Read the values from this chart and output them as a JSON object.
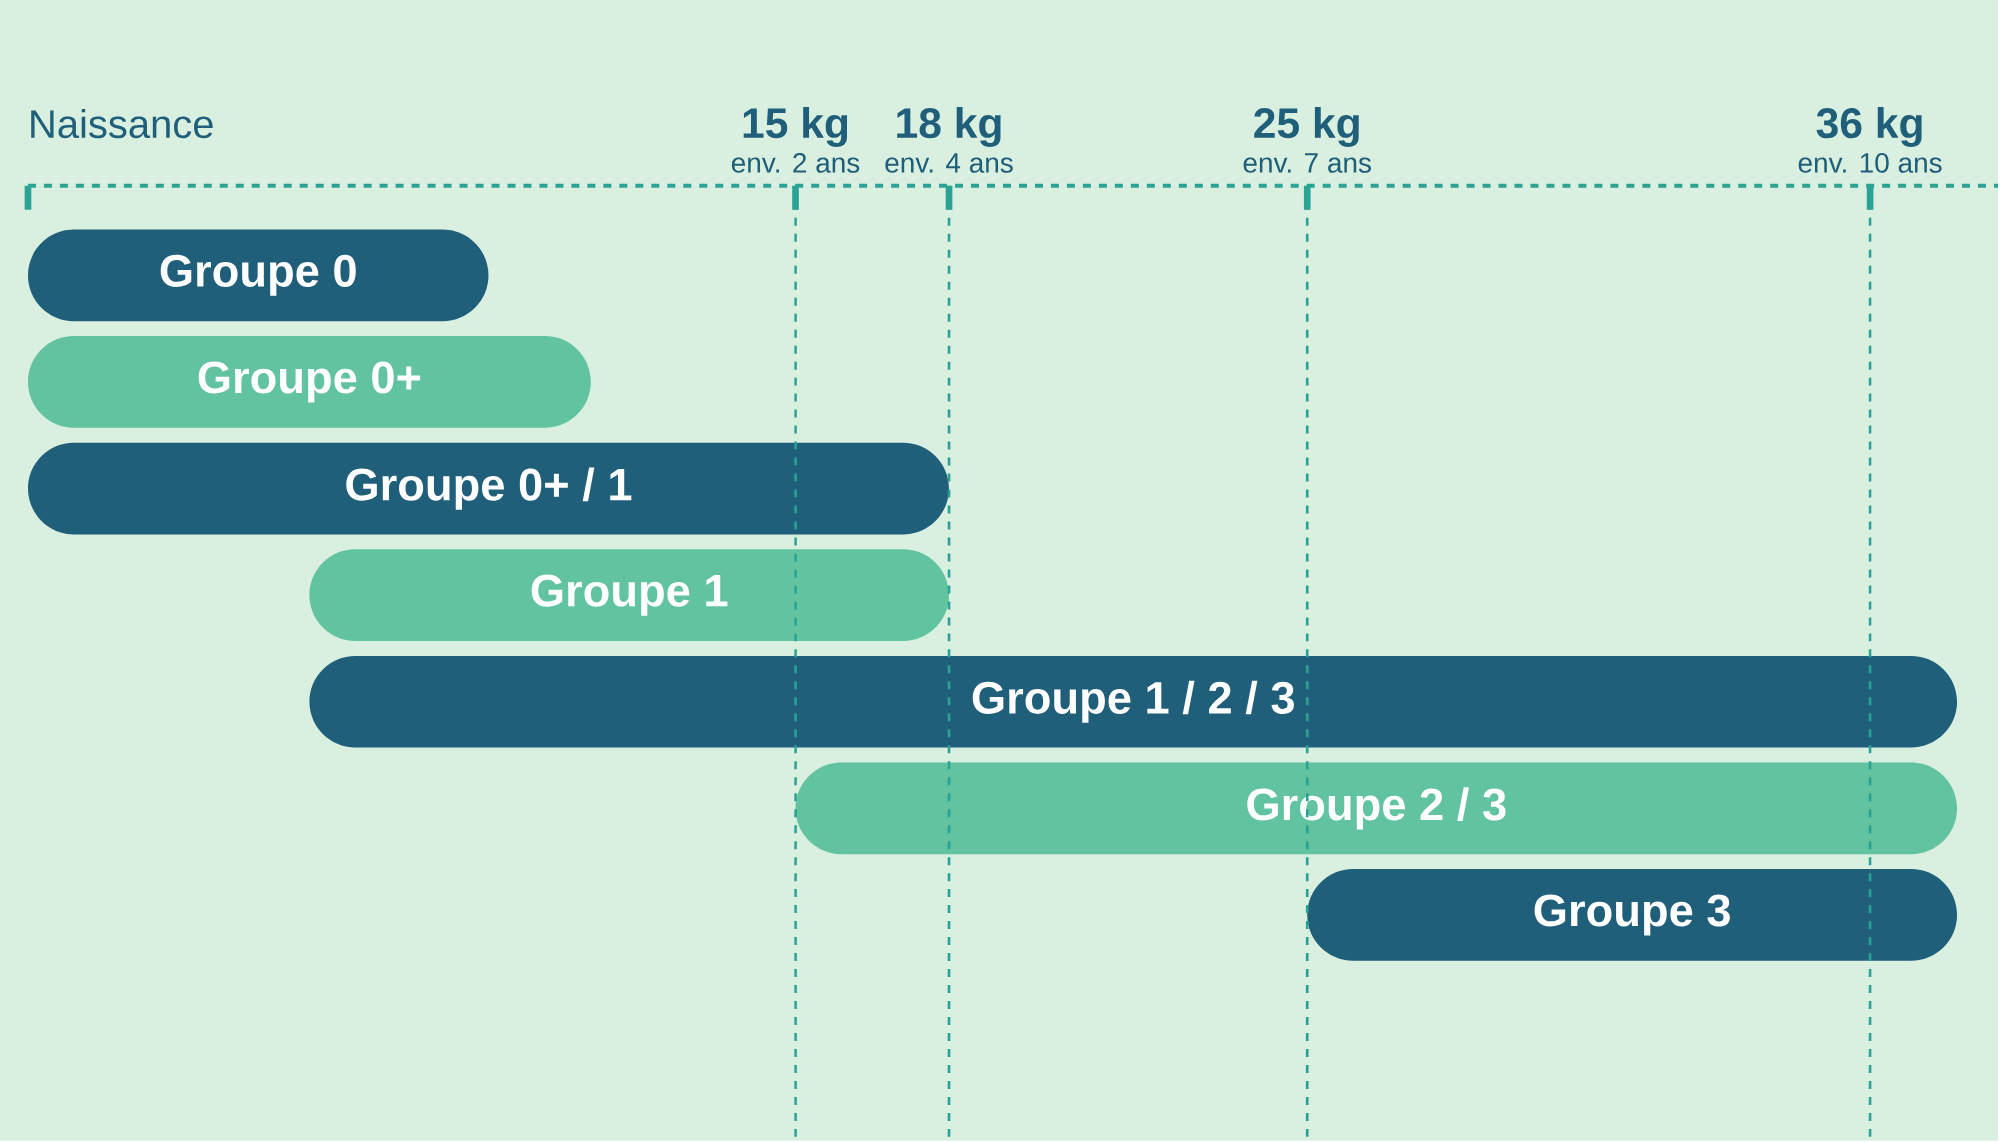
{
  "chart_data": {
    "type": "bar",
    "orientation": "horizontal",
    "categories": [
      "Groupe 0",
      "Groupe 0+",
      "Groupe 0+ / 1",
      "Groupe 1",
      "Groupe 1 / 2 / 3",
      "Groupe 2 / 3",
      "Groupe 3"
    ],
    "base": [
      0,
      0,
      0,
      5.5,
      5.5,
      15,
      25
    ],
    "values": [
      9,
      11,
      18,
      12.5,
      32.2,
      22.7,
      12.7
    ],
    "colors": [
      "#1f5f7a",
      "#62c3a0",
      "#1f5f7a",
      "#62c3a0",
      "#1f5f7a",
      "#62c3a0",
      "#1f5f7a"
    ],
    "xlim": [
      0,
      38.5
    ],
    "xticks": [
      {
        "value": 0,
        "label": "Naissance"
      },
      {
        "value": 15,
        "label": "15 kg"
      },
      {
        "value": 18,
        "label": "18 kg"
      },
      {
        "value": 25,
        "label": "25 kg"
      },
      {
        "value": 36,
        "label": "36 kg"
      }
    ],
    "ref_lines": [
      {
        "axis": "x",
        "value": 15,
        "label": "env. 2 ans",
        "color": "#2aa395",
        "line_style": "dashed"
      },
      {
        "axis": "x",
        "value": 18,
        "label": "env. 4 ans",
        "color": "#2aa395",
        "line_style": "dashed"
      },
      {
        "axis": "x",
        "value": 25,
        "label": "env. 7 ans",
        "color": "#2aa395",
        "line_style": "dashed"
      },
      {
        "axis": "x",
        "value": 36,
        "label": "env. 10 ans",
        "color": "#2aa395",
        "line_style": "dashed"
      }
    ],
    "tick_labels": "x"
  }
}
